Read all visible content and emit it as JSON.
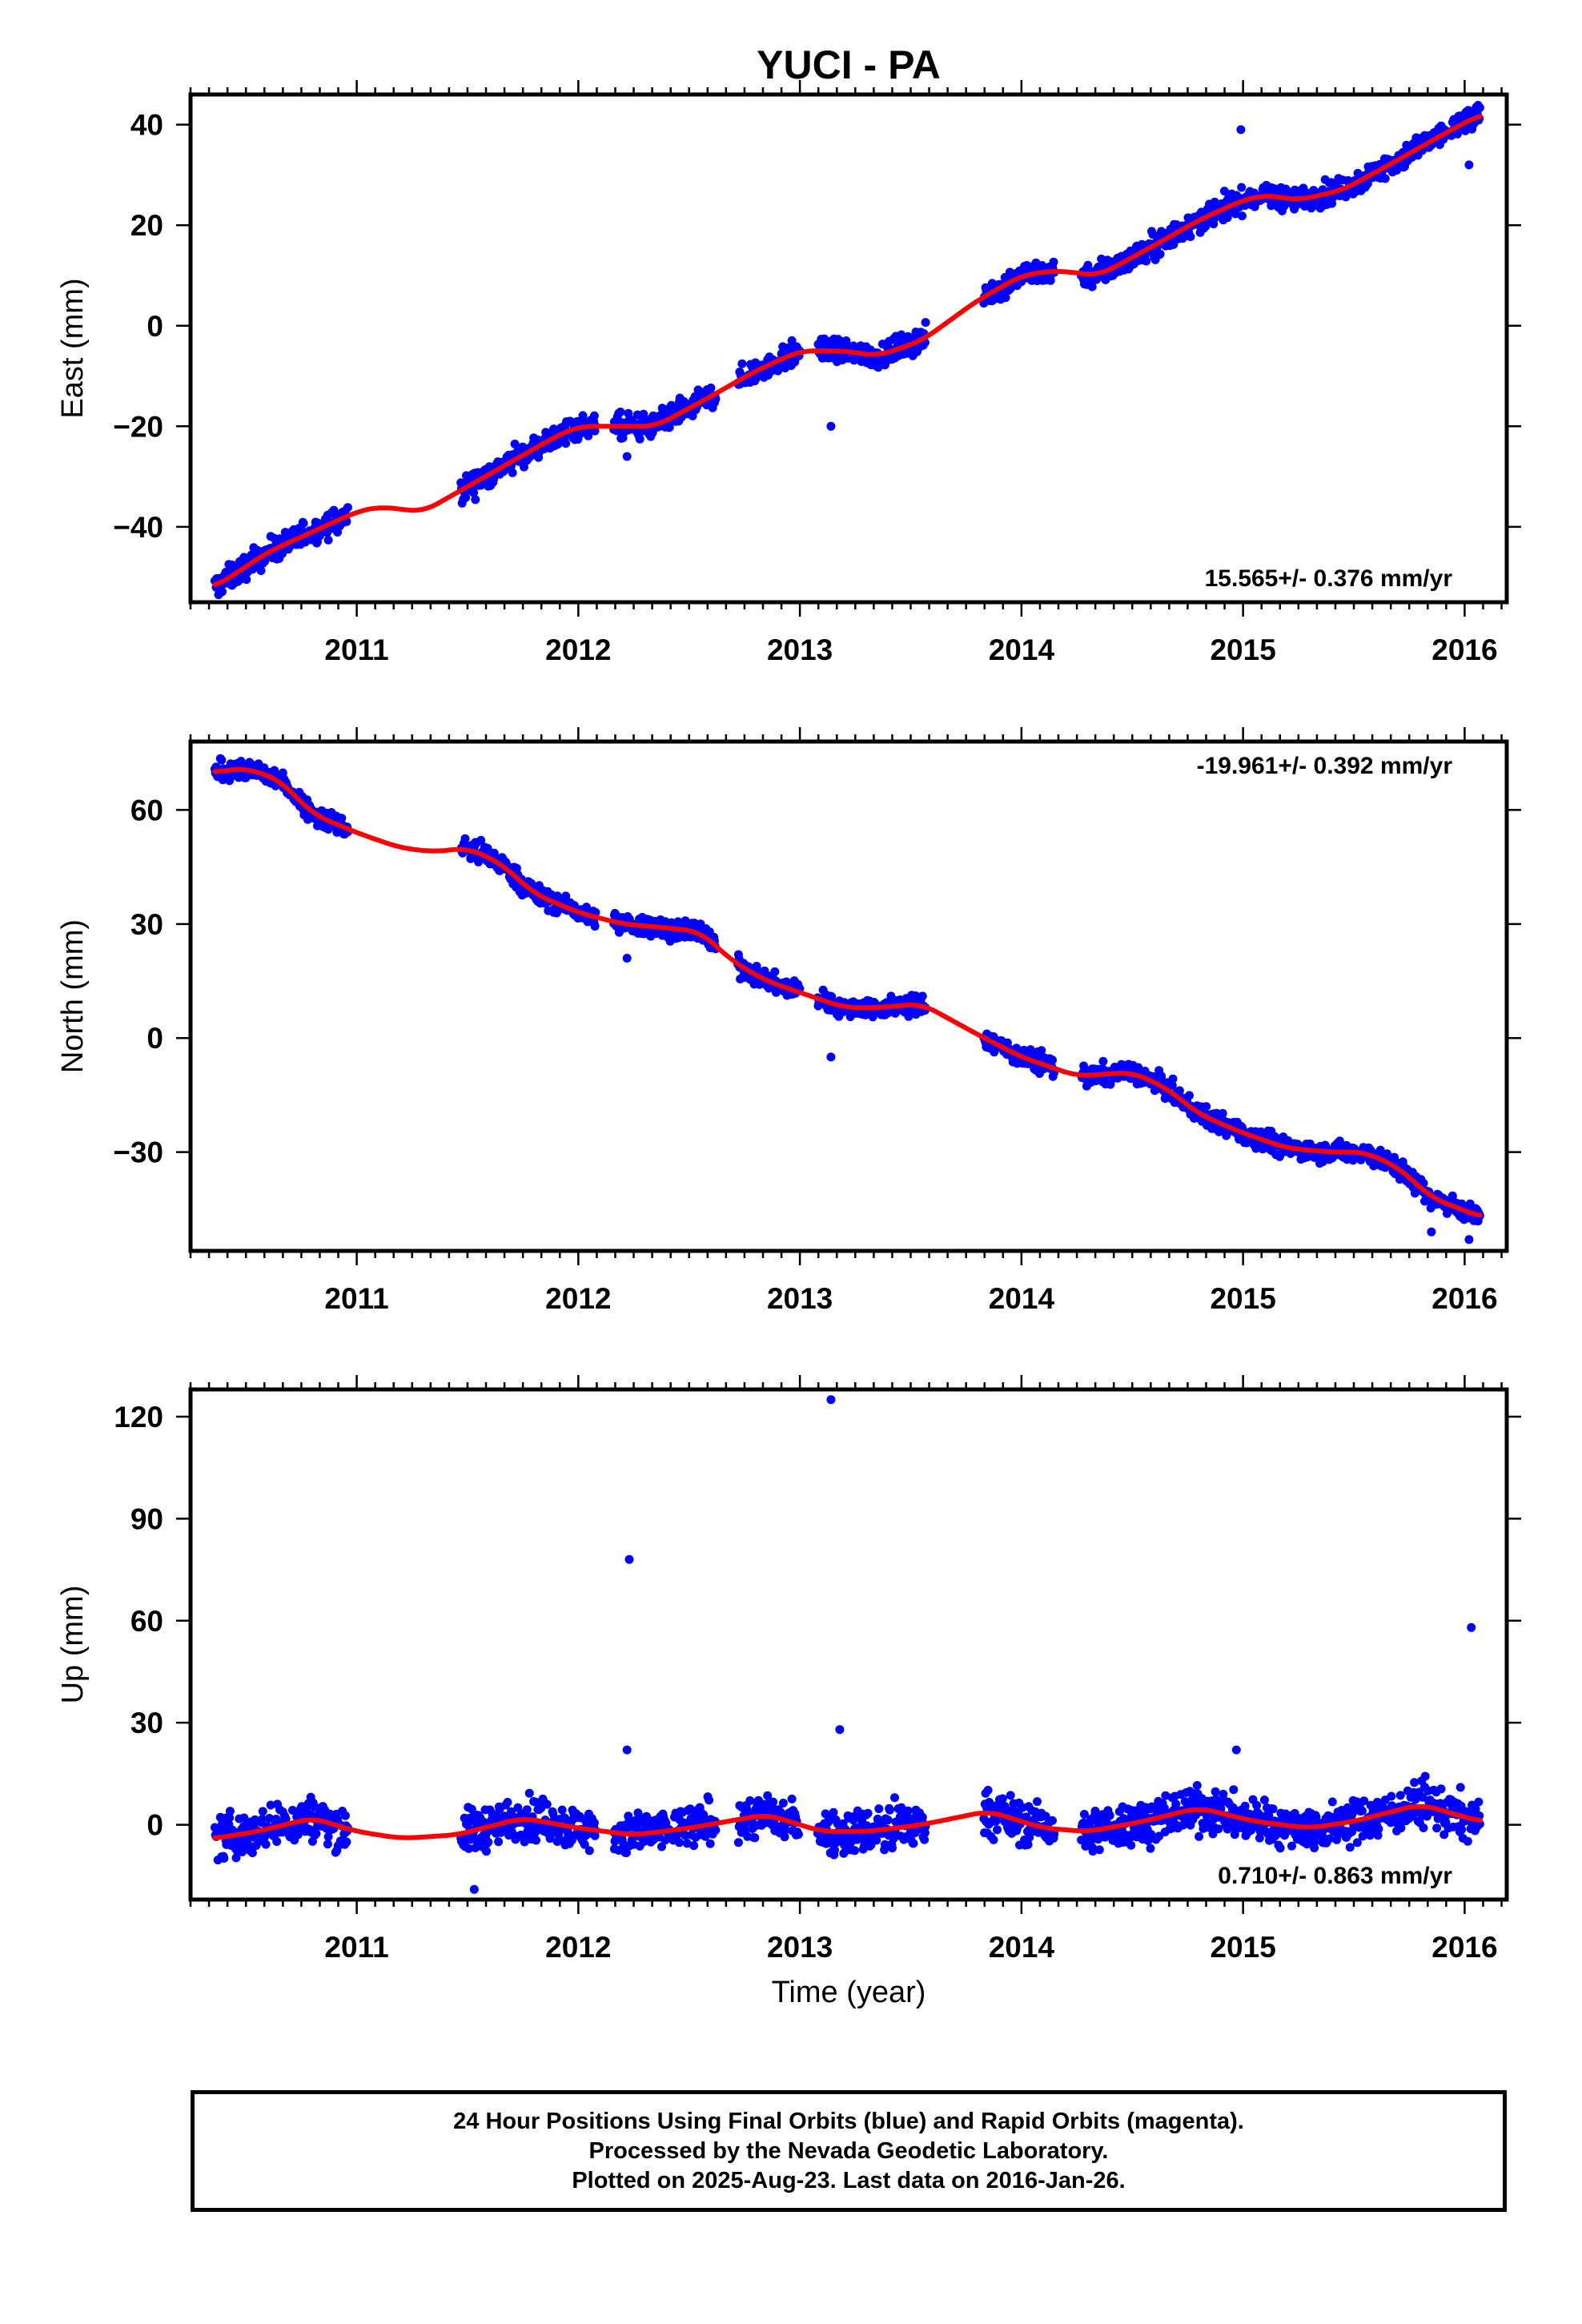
{
  "chart_data": {
    "type": "scatter",
    "title": "YUCI - PA",
    "xlabel": "Time (year)",
    "x_ticks": [
      2011,
      2012,
      2013,
      2014,
      2015,
      2016
    ],
    "xlim": [
      2010.25,
      2016.19
    ],
    "colors": {
      "data": "#0000ff",
      "fit": "#ff0000",
      "frame": "#000000"
    },
    "panels": [
      {
        "name": "east",
        "ylabel": "East (mm)",
        "ylim": [
          -55,
          46
        ],
        "y_ticks": [
          -40,
          -20,
          0,
          20,
          40
        ],
        "y_tick_labels": [
          "−40",
          "−20",
          "0",
          "20",
          "40"
        ],
        "rate_text": "15.565+/- 0.376 mm/yr",
        "data_segments": [
          [
            2010.36,
            2010.96
          ],
          [
            2011.47,
            2012.08
          ],
          [
            2012.16,
            2012.62
          ],
          [
            2012.72,
            2013.0
          ],
          [
            2013.08,
            2013.57
          ],
          [
            2013.83,
            2014.15
          ],
          [
            2014.27,
            2016.07
          ]
        ],
        "fit_curve": {
          "x": [
            2010.36,
            2010.6,
            2010.8,
            2011.0,
            2011.1,
            2011.3,
            2011.5,
            2011.7,
            2011.9,
            2012.0,
            2012.2,
            2012.35,
            2012.6,
            2012.8,
            2013.0,
            2013.2,
            2013.35,
            2013.55,
            2013.8,
            2014.0,
            2014.15,
            2014.35,
            2014.6,
            2014.8,
            2015.0,
            2015.1,
            2015.25,
            2015.45,
            2015.7,
            2015.9,
            2016.07
          ],
          "y": [
            -52,
            -45,
            -41,
            -37,
            -36,
            -37,
            -32,
            -27,
            -22,
            -20,
            -20,
            -20,
            -14,
            -9,
            -5,
            -5,
            -6,
            -3,
            5,
            10,
            11,
            10,
            16,
            21,
            25,
            26,
            25,
            27,
            33,
            38,
            42
          ]
        },
        "outliers": [
          {
            "x": 2013.14,
            "y": -20
          },
          {
            "x": 2014.99,
            "y": 39
          },
          {
            "x": 2012.22,
            "y": -26
          },
          {
            "x": 2016.02,
            "y": 32
          }
        ]
      },
      {
        "name": "north",
        "ylabel": "North (mm)",
        "ylim": [
          -56,
          78
        ],
        "y_ticks": [
          -30,
          0,
          30,
          60
        ],
        "y_tick_labels": [
          "−30",
          "0",
          "30",
          "60"
        ],
        "rate_text": "-19.961+/- 0.392 mm/yr",
        "data_segments": [
          [
            2010.36,
            2010.96
          ],
          [
            2011.47,
            2012.08
          ],
          [
            2012.16,
            2012.62
          ],
          [
            2012.72,
            2013.0
          ],
          [
            2013.08,
            2013.57
          ],
          [
            2013.83,
            2014.15
          ],
          [
            2014.27,
            2016.07
          ]
        ],
        "fit_curve": {
          "x": [
            2010.36,
            2010.5,
            2010.65,
            2010.8,
            2011.0,
            2011.2,
            2011.35,
            2011.5,
            2011.65,
            2011.8,
            2012.0,
            2012.2,
            2012.4,
            2012.55,
            2012.7,
            2012.85,
            2013.0,
            2013.2,
            2013.35,
            2013.55,
            2013.8,
            2014.0,
            2014.25,
            2014.5,
            2014.65,
            2014.8,
            2015.0,
            2015.2,
            2015.4,
            2015.55,
            2015.7,
            2015.85,
            2016.07
          ],
          "y": [
            70,
            71,
            68,
            59,
            54,
            50,
            49,
            50,
            46,
            38,
            33,
            30,
            29,
            28,
            20,
            15,
            12,
            8,
            8,
            9,
            1,
            -5,
            -10,
            -9,
            -13,
            -20,
            -25,
            -29,
            -30,
            -30,
            -34,
            -42,
            -47
          ]
        },
        "outliers": [
          {
            "x": 2013.14,
            "y": -5
          },
          {
            "x": 2012.22,
            "y": 21
          },
          {
            "x": 2016.02,
            "y": -53
          },
          {
            "x": 2015.85,
            "y": -51
          }
        ]
      },
      {
        "name": "up",
        "ylabel": "Up (mm)",
        "ylim": [
          -22,
          128
        ],
        "y_ticks": [
          0,
          30,
          60,
          90,
          120
        ],
        "y_tick_labels": [
          "0",
          "30",
          "60",
          "90",
          "120"
        ],
        "rate_text": "0.710+/- 0.863 mm/yr",
        "data_segments": [
          [
            2010.36,
            2010.96
          ],
          [
            2011.47,
            2012.08
          ],
          [
            2012.16,
            2012.62
          ],
          [
            2012.72,
            2013.0
          ],
          [
            2013.08,
            2013.57
          ],
          [
            2013.83,
            2014.15
          ],
          [
            2014.27,
            2016.07
          ]
        ],
        "fit_curve": {
          "x": [
            2010.36,
            2010.55,
            2010.8,
            2011.0,
            2011.2,
            2011.45,
            2011.75,
            2012.0,
            2012.25,
            2012.5,
            2012.85,
            2013.1,
            2013.3,
            2013.55,
            2013.85,
            2014.1,
            2014.3,
            2014.55,
            2014.8,
            2015.05,
            2015.3,
            2015.5,
            2015.8,
            2016.07
          ],
          "y": [
            -4,
            -2,
            2,
            -2,
            -4,
            -3,
            2,
            -1,
            -3,
            -1,
            3,
            -2,
            -2,
            0,
            4,
            -1,
            -2,
            1,
            5,
            1,
            -1,
            1,
            6,
            1
          ]
        },
        "outliers": [
          {
            "x": 2013.14,
            "y": 125
          },
          {
            "x": 2012.23,
            "y": 78
          },
          {
            "x": 2016.03,
            "y": 58
          },
          {
            "x": 2013.18,
            "y": 28
          },
          {
            "x": 2012.22,
            "y": 22
          },
          {
            "x": 2014.97,
            "y": 22
          },
          {
            "x": 2011.53,
            "y": -19
          }
        ]
      }
    ]
  },
  "caption": {
    "line1": "24 Hour Positions Using Final Orbits (blue) and Rapid Orbits (magenta).",
    "line2": "Processed by the Nevada Geodetic Laboratory.",
    "line3": "Plotted on 2025-Aug-23. Last data on 2016-Jan-26."
  }
}
